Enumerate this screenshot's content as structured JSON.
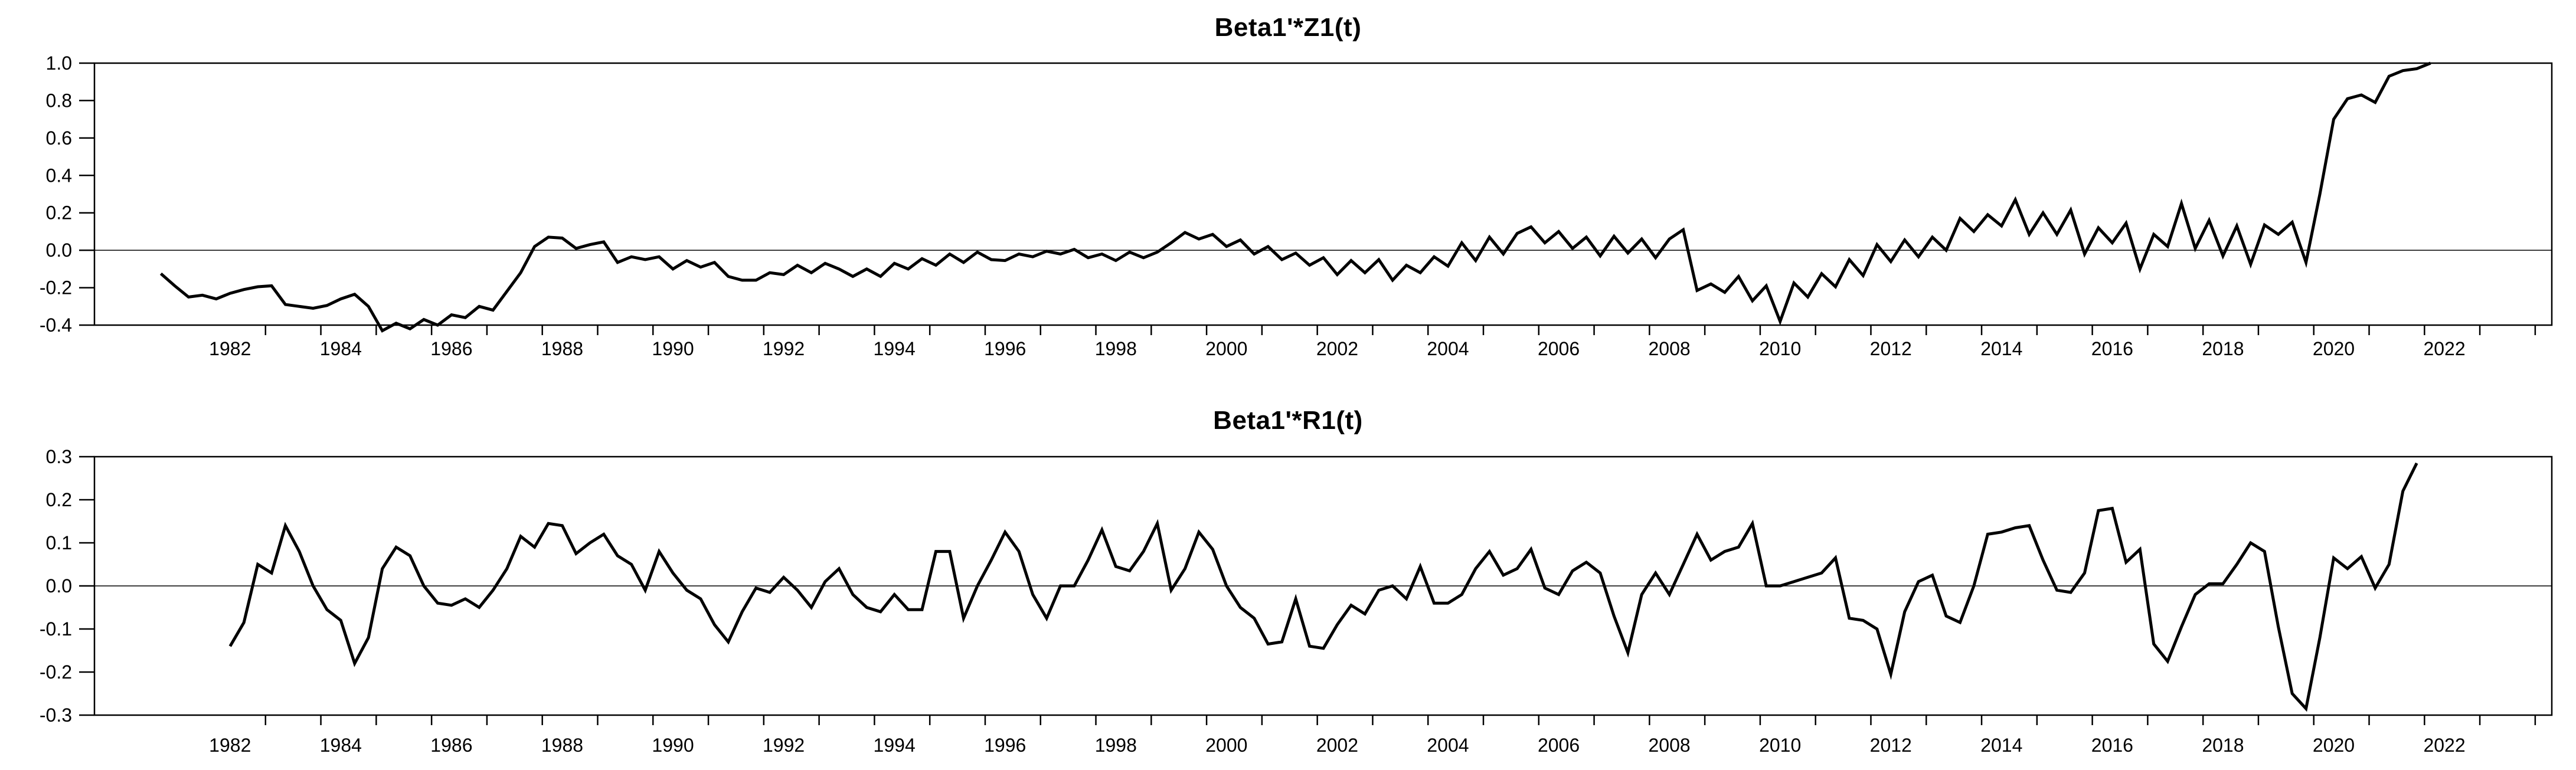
{
  "page": {
    "background": "#ffffff",
    "text_color": "#000000"
  },
  "chart_data": [
    {
      "type": "line",
      "title": "Beta1'*Z1(t)",
      "frequency": "quarterly",
      "legend": "none",
      "grid": "horizontal-zero-line-only",
      "line_color": "#000000",
      "xlim": [
        1979.55,
        2023.94
      ],
      "ylim": [
        -0.4,
        1.0
      ],
      "yticks": [
        1.0,
        0.8,
        0.6,
        0.4,
        0.2,
        0.0,
        -0.2,
        -0.4
      ],
      "ytick_labels": [
        "1.0",
        "0.8",
        "0.6",
        "0.4",
        "0.2",
        "0.0",
        "-0.2",
        "-0.4"
      ],
      "xtick_labels": [
        "1982",
        "1984",
        "1986",
        "1988",
        "1990",
        "1992",
        "1994",
        "1996",
        "1998",
        "2000",
        "2002",
        "2004",
        "2006",
        "2008",
        "2010",
        "2012",
        "2014",
        "2016",
        "2018",
        "2020",
        "2022"
      ],
      "x_start": 1980.75,
      "x_step": 0.25,
      "values": [
        -0.125,
        -0.19,
        -0.25,
        -0.24,
        -0.26,
        -0.23,
        -0.21,
        -0.195,
        -0.19,
        -0.29,
        -0.3,
        -0.31,
        -0.295,
        -0.26,
        -0.235,
        -0.3,
        -0.43,
        -0.39,
        -0.42,
        -0.37,
        -0.4,
        -0.345,
        -0.36,
        -0.3,
        -0.32,
        -0.22,
        -0.12,
        0.02,
        0.07,
        0.065,
        0.01,
        0.03,
        0.045,
        -0.065,
        -0.035,
        -0.05,
        -0.035,
        -0.1,
        -0.055,
        -0.09,
        -0.065,
        -0.14,
        -0.16,
        -0.16,
        -0.12,
        -0.13,
        -0.08,
        -0.12,
        -0.07,
        -0.1,
        -0.14,
        -0.1,
        -0.14,
        -0.07,
        -0.1,
        -0.045,
        -0.08,
        -0.02,
        -0.065,
        -0.01,
        -0.05,
        -0.055,
        -0.02,
        -0.035,
        -0.005,
        -0.02,
        0.005,
        -0.04,
        -0.02,
        -0.055,
        -0.01,
        -0.04,
        -0.01,
        0.04,
        0.095,
        0.06,
        0.085,
        0.02,
        0.055,
        -0.02,
        0.02,
        -0.05,
        -0.015,
        -0.08,
        -0.04,
        -0.13,
        -0.055,
        -0.12,
        -0.05,
        -0.16,
        -0.08,
        -0.12,
        -0.035,
        -0.085,
        0.04,
        -0.055,
        0.07,
        -0.02,
        0.09,
        0.125,
        0.04,
        0.1,
        0.01,
        0.07,
        -0.03,
        0.075,
        -0.015,
        0.06,
        -0.04,
        0.06,
        0.11,
        -0.215,
        -0.18,
        -0.225,
        -0.14,
        -0.27,
        -0.19,
        -0.38,
        -0.175,
        -0.25,
        -0.125,
        -0.195,
        -0.05,
        -0.135,
        0.03,
        -0.06,
        0.055,
        -0.035,
        0.07,
        0.0,
        0.17,
        0.1,
        0.19,
        0.13,
        0.27,
        0.085,
        0.2,
        0.085,
        0.215,
        -0.02,
        0.12,
        0.04,
        0.145,
        -0.1,
        0.085,
        0.02,
        0.25,
        0.01,
        0.16,
        -0.03,
        0.13,
        -0.075,
        0.135,
        0.085,
        0.15,
        -0.065,
        0.3,
        0.7,
        0.81,
        0.83,
        0.79,
        0.93,
        0.96,
        0.97,
        1.0
      ]
    },
    {
      "type": "line",
      "title": "Beta1'*R1(t)",
      "frequency": "quarterly",
      "legend": "none",
      "grid": "horizontal-zero-line-only",
      "line_color": "#000000",
      "xlim": [
        1979.55,
        2023.94
      ],
      "ylim": [
        -0.3,
        0.3
      ],
      "yticks": [
        0.3,
        0.2,
        0.1,
        0.0,
        -0.1,
        -0.2,
        -0.3
      ],
      "ytick_labels": [
        "0.3",
        "0.2",
        "0.1",
        "0.0",
        "-0.1",
        "-0.2",
        "-0.3"
      ],
      "xtick_labels": [
        "1982",
        "1984",
        "1986",
        "1988",
        "1990",
        "1992",
        "1994",
        "1996",
        "1998",
        "2000",
        "2002",
        "2004",
        "2006",
        "2008",
        "2010",
        "2012",
        "2014",
        "2016",
        "2018",
        "2020",
        "2022"
      ],
      "x_start": 1982.0,
      "x_step": 0.25,
      "values": [
        -0.14,
        -0.085,
        0.05,
        0.03,
        0.14,
        0.08,
        0.0,
        -0.055,
        -0.08,
        -0.18,
        -0.12,
        0.04,
        0.09,
        0.07,
        0.0,
        -0.04,
        -0.045,
        -0.03,
        -0.05,
        -0.01,
        0.04,
        0.115,
        0.09,
        0.145,
        0.14,
        0.075,
        0.1,
        0.12,
        0.07,
        0.05,
        -0.01,
        0.08,
        0.03,
        -0.01,
        -0.03,
        -0.09,
        -0.13,
        -0.06,
        -0.005,
        -0.015,
        0.02,
        -0.01,
        -0.05,
        0.01,
        0.04,
        -0.02,
        -0.05,
        -0.06,
        -0.02,
        -0.055,
        -0.055,
        0.08,
        0.08,
        -0.075,
        0.0,
        0.06,
        0.125,
        0.08,
        -0.02,
        -0.075,
        0.0,
        0.0,
        0.06,
        0.13,
        0.045,
        0.035,
        0.08,
        0.145,
        -0.01,
        0.04,
        0.125,
        0.085,
        0.0,
        -0.05,
        -0.075,
        -0.135,
        -0.13,
        -0.03,
        -0.14,
        -0.145,
        -0.09,
        -0.045,
        -0.065,
        -0.01,
        0.0,
        -0.03,
        0.045,
        -0.04,
        -0.04,
        -0.02,
        0.04,
        0.08,
        0.025,
        0.04,
        0.085,
        -0.005,
        -0.02,
        0.035,
        0.055,
        0.03,
        -0.07,
        -0.155,
        -0.02,
        0.03,
        -0.02,
        0.05,
        0.12,
        0.06,
        0.08,
        0.09,
        0.145,
        0.0,
        0.0,
        0.01,
        0.02,
        0.03,
        0.065,
        -0.075,
        -0.08,
        -0.1,
        -0.205,
        -0.06,
        0.01,
        0.025,
        -0.07,
        -0.085,
        0.0,
        0.12,
        0.125,
        0.135,
        0.14,
        0.06,
        -0.01,
        -0.015,
        0.03,
        0.175,
        0.18,
        0.055,
        0.085,
        -0.135,
        -0.175,
        -0.095,
        -0.02,
        0.005,
        0.005,
        0.05,
        0.1,
        0.08,
        -0.095,
        -0.25,
        -0.285,
        -0.12,
        0.065,
        0.04,
        0.068,
        -0.005,
        0.05,
        0.22,
        0.285
      ]
    }
  ]
}
